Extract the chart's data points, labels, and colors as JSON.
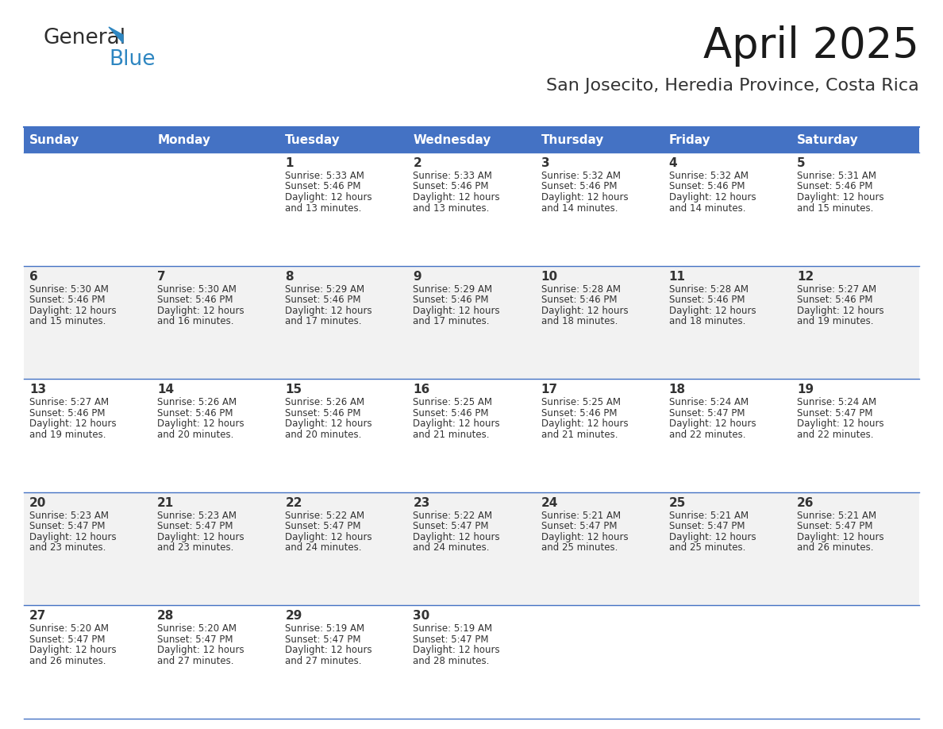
{
  "title": "April 2025",
  "subtitle": "San Josecito, Heredia Province, Costa Rica",
  "header_bg": "#4472C4",
  "header_text_color": "#FFFFFF",
  "weekdays": [
    "Sunday",
    "Monday",
    "Tuesday",
    "Wednesday",
    "Thursday",
    "Friday",
    "Saturday"
  ],
  "row_bg_white": "#FFFFFF",
  "row_bg_gray": "#F2F2F2",
  "cell_text_color": "#333333",
  "border_color": "#4472C4",
  "days": [
    {
      "day": 1,
      "col": 2,
      "row": 0,
      "sunrise": "5:33 AM",
      "sunset": "5:46 PM",
      "daylight_min": 13
    },
    {
      "day": 2,
      "col": 3,
      "row": 0,
      "sunrise": "5:33 AM",
      "sunset": "5:46 PM",
      "daylight_min": 13
    },
    {
      "day": 3,
      "col": 4,
      "row": 0,
      "sunrise": "5:32 AM",
      "sunset": "5:46 PM",
      "daylight_min": 14
    },
    {
      "day": 4,
      "col": 5,
      "row": 0,
      "sunrise": "5:32 AM",
      "sunset": "5:46 PM",
      "daylight_min": 14
    },
    {
      "day": 5,
      "col": 6,
      "row": 0,
      "sunrise": "5:31 AM",
      "sunset": "5:46 PM",
      "daylight_min": 15
    },
    {
      "day": 6,
      "col": 0,
      "row": 1,
      "sunrise": "5:30 AM",
      "sunset": "5:46 PM",
      "daylight_min": 15
    },
    {
      "day": 7,
      "col": 1,
      "row": 1,
      "sunrise": "5:30 AM",
      "sunset": "5:46 PM",
      "daylight_min": 16
    },
    {
      "day": 8,
      "col": 2,
      "row": 1,
      "sunrise": "5:29 AM",
      "sunset": "5:46 PM",
      "daylight_min": 17
    },
    {
      "day": 9,
      "col": 3,
      "row": 1,
      "sunrise": "5:29 AM",
      "sunset": "5:46 PM",
      "daylight_min": 17
    },
    {
      "day": 10,
      "col": 4,
      "row": 1,
      "sunrise": "5:28 AM",
      "sunset": "5:46 PM",
      "daylight_min": 18
    },
    {
      "day": 11,
      "col": 5,
      "row": 1,
      "sunrise": "5:28 AM",
      "sunset": "5:46 PM",
      "daylight_min": 18
    },
    {
      "day": 12,
      "col": 6,
      "row": 1,
      "sunrise": "5:27 AM",
      "sunset": "5:46 PM",
      "daylight_min": 19
    },
    {
      "day": 13,
      "col": 0,
      "row": 2,
      "sunrise": "5:27 AM",
      "sunset": "5:46 PM",
      "daylight_min": 19
    },
    {
      "day": 14,
      "col": 1,
      "row": 2,
      "sunrise": "5:26 AM",
      "sunset": "5:46 PM",
      "daylight_min": 20
    },
    {
      "day": 15,
      "col": 2,
      "row": 2,
      "sunrise": "5:26 AM",
      "sunset": "5:46 PM",
      "daylight_min": 20
    },
    {
      "day": 16,
      "col": 3,
      "row": 2,
      "sunrise": "5:25 AM",
      "sunset": "5:46 PM",
      "daylight_min": 21
    },
    {
      "day": 17,
      "col": 4,
      "row": 2,
      "sunrise": "5:25 AM",
      "sunset": "5:46 PM",
      "daylight_min": 21
    },
    {
      "day": 18,
      "col": 5,
      "row": 2,
      "sunrise": "5:24 AM",
      "sunset": "5:47 PM",
      "daylight_min": 22
    },
    {
      "day": 19,
      "col": 6,
      "row": 2,
      "sunrise": "5:24 AM",
      "sunset": "5:47 PM",
      "daylight_min": 22
    },
    {
      "day": 20,
      "col": 0,
      "row": 3,
      "sunrise": "5:23 AM",
      "sunset": "5:47 PM",
      "daylight_min": 23
    },
    {
      "day": 21,
      "col": 1,
      "row": 3,
      "sunrise": "5:23 AM",
      "sunset": "5:47 PM",
      "daylight_min": 23
    },
    {
      "day": 22,
      "col": 2,
      "row": 3,
      "sunrise": "5:22 AM",
      "sunset": "5:47 PM",
      "daylight_min": 24
    },
    {
      "day": 23,
      "col": 3,
      "row": 3,
      "sunrise": "5:22 AM",
      "sunset": "5:47 PM",
      "daylight_min": 24
    },
    {
      "day": 24,
      "col": 4,
      "row": 3,
      "sunrise": "5:21 AM",
      "sunset": "5:47 PM",
      "daylight_min": 25
    },
    {
      "day": 25,
      "col": 5,
      "row": 3,
      "sunrise": "5:21 AM",
      "sunset": "5:47 PM",
      "daylight_min": 25
    },
    {
      "day": 26,
      "col": 6,
      "row": 3,
      "sunrise": "5:21 AM",
      "sunset": "5:47 PM",
      "daylight_min": 26
    },
    {
      "day": 27,
      "col": 0,
      "row": 4,
      "sunrise": "5:20 AM",
      "sunset": "5:47 PM",
      "daylight_min": 26
    },
    {
      "day": 28,
      "col": 1,
      "row": 4,
      "sunrise": "5:20 AM",
      "sunset": "5:47 PM",
      "daylight_min": 27
    },
    {
      "day": 29,
      "col": 2,
      "row": 4,
      "sunrise": "5:19 AM",
      "sunset": "5:47 PM",
      "daylight_min": 27
    },
    {
      "day": 30,
      "col": 3,
      "row": 4,
      "sunrise": "5:19 AM",
      "sunset": "5:47 PM",
      "daylight_min": 28
    }
  ],
  "logo_color_general": "#2D2D2D",
  "logo_color_blue": "#2E86C1",
  "logo_triangle_color": "#2E86C1",
  "title_fontsize": 38,
  "subtitle_fontsize": 16,
  "header_fontsize": 11,
  "day_num_fontsize": 11,
  "cell_fontsize": 8.5
}
